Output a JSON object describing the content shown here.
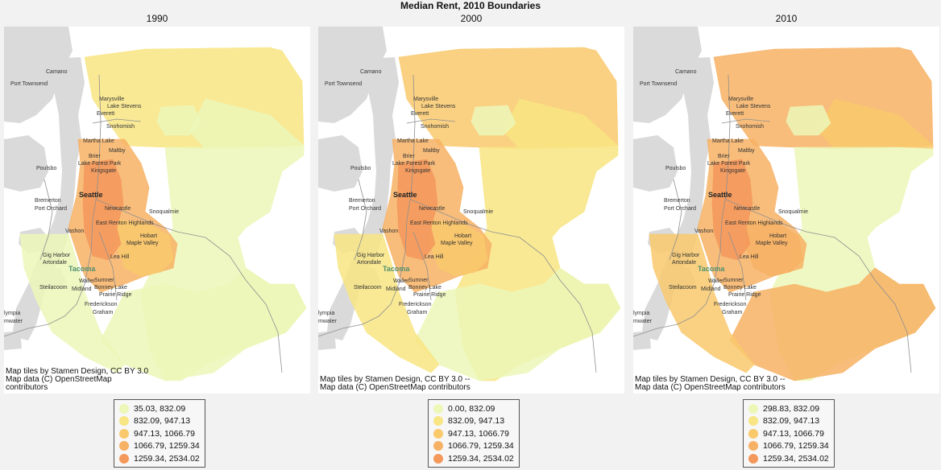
{
  "suptitle": "Median Rent, 2010 Boundaries",
  "colors": {
    "bins": [
      "#ecf7b8",
      "#f8e583",
      "#f9c96c",
      "#f7b164",
      "#f4985c"
    ],
    "water": "#dadada",
    "land": "#ffffff",
    "roads": "#8f8f8f"
  },
  "places": [
    {
      "name": "Camano"
    },
    {
      "name": "Port Townsend"
    },
    {
      "name": "Marysville"
    },
    {
      "name": "Lake Stevens"
    },
    {
      "name": "Everett"
    },
    {
      "name": "Snohomish"
    },
    {
      "name": "Martha Lake"
    },
    {
      "name": "Brier"
    },
    {
      "name": "Maltby"
    },
    {
      "name": "Lake Forest Park"
    },
    {
      "name": "Kingsgate"
    },
    {
      "name": "Poulsbo"
    },
    {
      "name": "Seattle"
    },
    {
      "name": "Bremerton"
    },
    {
      "name": "Port Orchard"
    },
    {
      "name": "Newcastle"
    },
    {
      "name": "Snoqualmie"
    },
    {
      "name": "East Renton Highlands"
    },
    {
      "name": "Vashon"
    },
    {
      "name": "Hobart"
    },
    {
      "name": "Maple Valley"
    },
    {
      "name": "Gig Harbor"
    },
    {
      "name": "Artondale"
    },
    {
      "name": "Lea Hill"
    },
    {
      "name": "Tacoma"
    },
    {
      "name": "Sumner"
    },
    {
      "name": "Steilacoom"
    },
    {
      "name": "Waller"
    },
    {
      "name": "Bonney Lake"
    },
    {
      "name": "Midland"
    },
    {
      "name": "Prairie Ridge"
    },
    {
      "name": "Frederickson"
    },
    {
      "name": "Graham"
    },
    {
      "name": "lympia"
    },
    {
      "name": "mwater"
    }
  ],
  "panels": [
    {
      "title": "1990",
      "attribution": "Map tiles by Stamen Design, CC BY 3.0\nMap data (C) OpenStreetMap\ncontributors",
      "legend": [
        {
          "label": "35.03,  832.09",
          "level": 0
        },
        {
          "label": "832.09,  947.13",
          "level": 1
        },
        {
          "label": "947.13, 1066.79",
          "level": 2
        },
        {
          "label": "1066.79, 1259.34",
          "level": 3
        },
        {
          "label": "1259.34, 2534.02",
          "level": 4
        }
      ],
      "regions": {
        "ne": 0,
        "east": 0,
        "se": 0,
        "sw": 0,
        "north": 1,
        "urban": 3,
        "core": 4,
        "fringe": 2,
        "pocket": 0
      }
    },
    {
      "title": "2000",
      "attribution": "Map tiles by Stamen Design, CC BY 3.0 --\nMap data (C) OpenStreetMap contributors",
      "legend": [
        {
          "label": "0.00,  832.09",
          "level": 0
        },
        {
          "label": "832.09,  947.13",
          "level": 1
        },
        {
          "label": "947.13, 1066.79",
          "level": 2
        },
        {
          "label": "1066.79, 1259.34",
          "level": 3
        },
        {
          "label": "1259.34, 2534.02",
          "level": 4
        }
      ],
      "regions": {
        "ne": 1,
        "east": 1,
        "se": 0,
        "sw": 1,
        "north": 2,
        "urban": 3,
        "core": 4,
        "fringe": 2,
        "pocket": 0
      }
    },
    {
      "title": "2010",
      "attribution": "Map tiles by Stamen Design, CC BY 3.0 --\nMap data (C) OpenStreetMap contributors",
      "legend": [
        {
          "label": "298.83,  832.09",
          "level": 0
        },
        {
          "label": "832.09,  947.13",
          "level": 1
        },
        {
          "label": "947.13, 1066.79",
          "level": 2
        },
        {
          "label": "1066.79, 1259.34",
          "level": 3
        },
        {
          "label": "1259.34, 2534.02",
          "level": 4
        }
      ],
      "regions": {
        "ne": 2,
        "east": 0,
        "se": 3,
        "sw": 2,
        "north": 3,
        "urban": 3,
        "core": 4,
        "fringe": 3,
        "pocket": 0
      }
    }
  ]
}
